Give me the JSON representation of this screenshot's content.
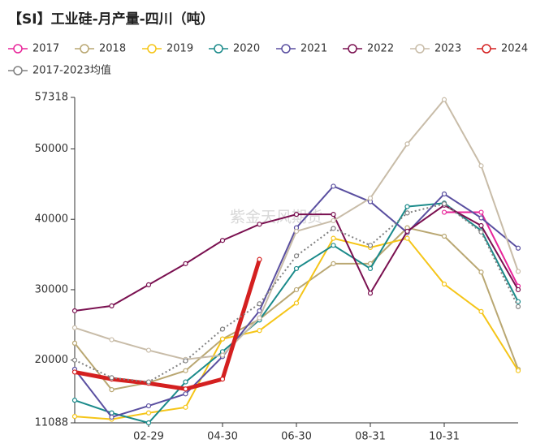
{
  "chart_data": {
    "type": "line",
    "title": "【SI】工业硅-月产量-四川（吨）",
    "watermark": "紫金天风期货",
    "categories": [
      null,
      null,
      "02-29",
      null,
      "04-30",
      null,
      "06-30",
      null,
      "08-31",
      null,
      "10-31",
      null,
      null
    ],
    "ylim": [
      11088,
      57318
    ],
    "yticks": [
      11088,
      20000,
      30000,
      40000,
      50000,
      57318
    ],
    "series": [
      {
        "name": "2017",
        "color": "#e8259a",
        "values": [
          null,
          null,
          null,
          null,
          null,
          null,
          null,
          null,
          null,
          null,
          41000,
          41000,
          30500
        ]
      },
      {
        "name": "2018",
        "color": "#b9a772",
        "values": [
          22400,
          15800,
          16800,
          18500,
          23000,
          25800,
          30000,
          33700,
          33700,
          38800,
          37600,
          32500,
          18700
        ]
      },
      {
        "name": "2019",
        "color": "#f5c518",
        "values": [
          12000,
          11600,
          12500,
          13300,
          23000,
          24200,
          28100,
          37300,
          36000,
          37300,
          30800,
          26900,
          18500
        ]
      },
      {
        "name": "2020",
        "color": "#1a8a8a",
        "values": [
          14300,
          12500,
          11088,
          16900,
          21200,
          25700,
          33000,
          36300,
          33000,
          41800,
          42300,
          38400,
          28300
        ]
      },
      {
        "name": "2021",
        "color": "#5a4fa0",
        "values": [
          18700,
          11900,
          13500,
          15200,
          20500,
          27000,
          38800,
          44700,
          42500,
          38100,
          43600,
          40200,
          35900
        ]
      },
      {
        "name": "2022",
        "color": "#7a1050",
        "values": [
          27000,
          27700,
          30700,
          33700,
          37000,
          39300,
          40700,
          40700,
          29500,
          38300,
          42000,
          39100,
          30000
        ]
      },
      {
        "name": "2023",
        "color": "#c8bca8",
        "values": [
          24600,
          22900,
          21400,
          20100,
          20700,
          26000,
          38300,
          39800,
          43000,
          50700,
          57000,
          47600,
          32600
        ]
      },
      {
        "name": "2024",
        "color": "#d42020",
        "values": [
          18300,
          17300,
          16700,
          15900,
          17300,
          34300,
          null,
          null,
          null,
          null,
          null,
          null,
          null
        ]
      },
      {
        "name": "2017-2023均值",
        "color": "#808080",
        "dashed": true,
        "values": [
          20000,
          17500,
          16900,
          19900,
          24400,
          28000,
          34800,
          38700,
          36300,
          40900,
          42200,
          38200,
          27600
        ]
      }
    ]
  }
}
